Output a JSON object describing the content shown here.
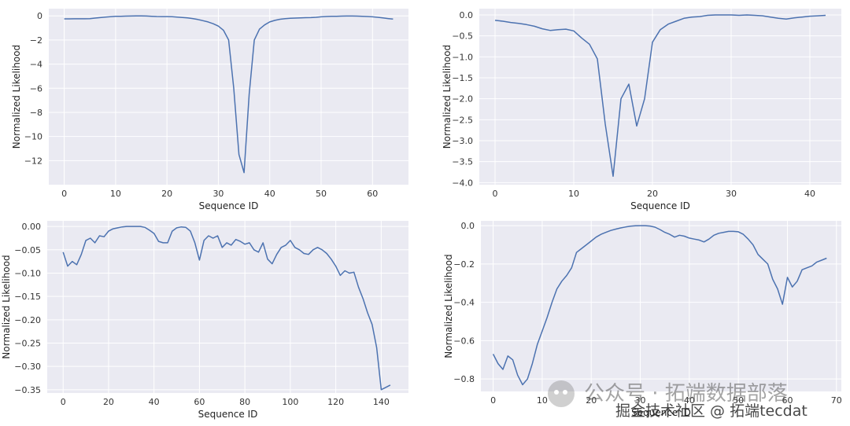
{
  "chart_data": [
    {
      "type": "line",
      "xlabel": "Sequence ID",
      "ylabel": "Normalized Likelihood",
      "xlim": [
        -3,
        67
      ],
      "ylim": [
        -14,
        0.6
      ],
      "xticks": [
        0,
        10,
        20,
        30,
        40,
        50,
        60
      ],
      "yticks": [
        0,
        -2,
        -4,
        -6,
        -8,
        -10,
        -12
      ],
      "ytick_labels": [
        "0",
        "−2",
        "−4",
        "−6",
        "−8",
        "−10",
        "−12"
      ],
      "grid": true,
      "color": "#4c72b0",
      "x": [
        0,
        1,
        2,
        3,
        4,
        5,
        6,
        7,
        8,
        9,
        10,
        11,
        12,
        13,
        14,
        15,
        16,
        17,
        18,
        19,
        20,
        21,
        22,
        23,
        24,
        25,
        26,
        27,
        28,
        29,
        30,
        31,
        32,
        33,
        34,
        35,
        36,
        37,
        38,
        39,
        40,
        41,
        42,
        43,
        44,
        45,
        46,
        47,
        48,
        49,
        50,
        51,
        52,
        53,
        54,
        55,
        56,
        57,
        58,
        59,
        60,
        61,
        62,
        63,
        64
      ],
      "y": [
        -0.25,
        -0.25,
        -0.24,
        -0.24,
        -0.24,
        -0.23,
        -0.18,
        -0.14,
        -0.1,
        -0.07,
        -0.04,
        -0.03,
        -0.02,
        -0.01,
        0,
        0,
        -0.01,
        -0.03,
        -0.05,
        -0.06,
        -0.06,
        -0.07,
        -0.1,
        -0.13,
        -0.17,
        -0.22,
        -0.3,
        -0.4,
        -0.5,
        -0.65,
        -0.85,
        -1.2,
        -2,
        -6,
        -11.5,
        -13,
        -6.5,
        -2,
        -1.1,
        -0.75,
        -0.5,
        -0.37,
        -0.28,
        -0.23,
        -0.2,
        -0.18,
        -0.16,
        -0.15,
        -0.14,
        -0.12,
        -0.08,
        -0.05,
        -0.04,
        -0.03,
        -0.02,
        -0.01,
        -0.01,
        -0.02,
        -0.03,
        -0.05,
        -0.08,
        -0.12,
        -0.17,
        -0.22,
        -0.27
      ]
    },
    {
      "type": "line",
      "xlabel": "Sequence ID",
      "ylabel": "Normalized Likelihood",
      "xlim": [
        -2,
        44
      ],
      "ylim": [
        -4.05,
        0.15
      ],
      "xticks": [
        0,
        10,
        20,
        30,
        40
      ],
      "yticks": [
        0,
        -0.5,
        -1,
        -1.5,
        -2,
        -2.5,
        -3,
        -3.5,
        -4
      ],
      "ytick_labels": [
        "0.0",
        "−0.5",
        "−1.0",
        "−1.5",
        "−2.0",
        "−2.5",
        "−3.0",
        "−3.5",
        "−4.0"
      ],
      "grid": true,
      "color": "#4c72b0",
      "x": [
        0,
        1,
        2,
        3,
        4,
        5,
        6,
        7,
        8,
        9,
        10,
        11,
        12,
        13,
        14,
        15,
        16,
        17,
        18,
        19,
        20,
        21,
        22,
        23,
        24,
        25,
        26,
        27,
        28,
        29,
        30,
        31,
        32,
        33,
        34,
        35,
        36,
        37,
        38,
        39,
        40,
        41,
        42
      ],
      "y": [
        -0.13,
        -0.15,
        -0.18,
        -0.2,
        -0.23,
        -0.27,
        -0.33,
        -0.37,
        -0.35,
        -0.34,
        -0.38,
        -0.55,
        -0.7,
        -1.05,
        -2.6,
        -3.85,
        -2,
        -1.65,
        -2.65,
        -2,
        -0.65,
        -0.35,
        -0.22,
        -0.15,
        -0.08,
        -0.05,
        -0.04,
        -0.01,
        0,
        0,
        0,
        -0.01,
        0,
        -0.01,
        -0.02,
        -0.05,
        -0.08,
        -0.1,
        -0.07,
        -0.05,
        -0.03,
        -0.02,
        -0.01
      ]
    },
    {
      "type": "line",
      "xlabel": "Sequence ID",
      "ylabel": "Normalized Likelihood",
      "xlim": [
        -7,
        152
      ],
      "ylim": [
        -0.357,
        0.012
      ],
      "xticks": [
        0,
        20,
        40,
        60,
        80,
        100,
        120,
        140
      ],
      "yticks": [
        0,
        -0.05,
        -0.1,
        -0.15,
        -0.2,
        -0.25,
        -0.3,
        -0.35
      ],
      "ytick_labels": [
        "0.00",
        "−0.05",
        "−0.10",
        "−0.15",
        "−0.20",
        "−0.25",
        "−0.30",
        "−0.35"
      ],
      "grid": true,
      "color": "#4c72b0",
      "x": [
        0,
        2,
        4,
        6,
        8,
        10,
        12,
        14,
        16,
        18,
        20,
        22,
        24,
        26,
        28,
        30,
        32,
        34,
        36,
        38,
        40,
        42,
        44,
        46,
        48,
        50,
        52,
        54,
        56,
        58,
        60,
        62,
        64,
        66,
        68,
        70,
        72,
        74,
        76,
        78,
        80,
        82,
        84,
        86,
        88,
        90,
        92,
        94,
        96,
        98,
        100,
        102,
        104,
        106,
        108,
        110,
        112,
        114,
        116,
        118,
        120,
        122,
        124,
        126,
        128,
        130,
        132,
        134,
        136,
        138,
        140,
        142,
        144
      ],
      "y": [
        -0.055,
        -0.085,
        -0.075,
        -0.082,
        -0.06,
        -0.03,
        -0.025,
        -0.035,
        -0.02,
        -0.022,
        -0.01,
        -0.005,
        -0.003,
        -0.001,
        0,
        0,
        0,
        0,
        -0.002,
        -0.008,
        -0.015,
        -0.032,
        -0.035,
        -0.035,
        -0.01,
        -0.003,
        -0.001,
        -0.002,
        -0.01,
        -0.035,
        -0.072,
        -0.03,
        -0.02,
        -0.025,
        -0.02,
        -0.045,
        -0.035,
        -0.04,
        -0.028,
        -0.032,
        -0.038,
        -0.035,
        -0.05,
        -0.055,
        -0.035,
        -0.07,
        -0.08,
        -0.06,
        -0.045,
        -0.04,
        -0.03,
        -0.045,
        -0.05,
        -0.058,
        -0.06,
        -0.05,
        -0.045,
        -0.05,
        -0.058,
        -0.07,
        -0.085,
        -0.105,
        -0.095,
        -0.1,
        -0.098,
        -0.13,
        -0.155,
        -0.185,
        -0.21,
        -0.26,
        -0.35,
        -0.345,
        -0.34
      ]
    },
    {
      "type": "line",
      "xlabel": "Sequence ID",
      "ylabel": "Normalized Likelihood",
      "xlim": [
        -2.5,
        71
      ],
      "ylim": [
        -0.865,
        0.025
      ],
      "xticks": [
        0,
        10,
        20,
        30,
        40,
        50,
        60,
        70
      ],
      "yticks": [
        0,
        -0.2,
        -0.4,
        -0.6,
        -0.8
      ],
      "ytick_labels": [
        "0.0",
        "−0.2",
        "−0.4",
        "−0.6",
        "−0.8"
      ],
      "grid": true,
      "color": "#4c72b0",
      "x": [
        0,
        1,
        2,
        3,
        4,
        5,
        6,
        7,
        8,
        9,
        10,
        11,
        12,
        13,
        14,
        15,
        16,
        17,
        18,
        19,
        20,
        21,
        22,
        23,
        24,
        25,
        26,
        27,
        28,
        29,
        30,
        31,
        32,
        33,
        34,
        35,
        36,
        37,
        38,
        39,
        40,
        41,
        42,
        43,
        44,
        45,
        46,
        47,
        48,
        49,
        50,
        51,
        52,
        53,
        54,
        55,
        56,
        57,
        58,
        59,
        60,
        61,
        62,
        63,
        64,
        65,
        66,
        67,
        68
      ],
      "y": [
        -0.67,
        -0.72,
        -0.75,
        -0.68,
        -0.7,
        -0.78,
        -0.83,
        -0.8,
        -0.72,
        -0.62,
        -0.55,
        -0.48,
        -0.4,
        -0.33,
        -0.29,
        -0.26,
        -0.22,
        -0.14,
        -0.12,
        -0.1,
        -0.08,
        -0.06,
        -0.045,
        -0.035,
        -0.025,
        -0.018,
        -0.012,
        -0.007,
        -0.003,
        -0.001,
        0,
        0,
        -0.002,
        -0.008,
        -0.02,
        -0.035,
        -0.045,
        -0.06,
        -0.05,
        -0.055,
        -0.065,
        -0.07,
        -0.075,
        -0.085,
        -0.07,
        -0.05,
        -0.04,
        -0.035,
        -0.03,
        -0.03,
        -0.032,
        -0.045,
        -0.07,
        -0.1,
        -0.15,
        -0.175,
        -0.2,
        -0.28,
        -0.33,
        -0.41,
        -0.27,
        -0.32,
        -0.29,
        -0.23,
        -0.22,
        -0.21,
        -0.19,
        -0.18,
        -0.17
      ]
    }
  ],
  "watermark": {
    "line1": "公众号 · 拓端数据部落",
    "line2": "掘金技术社区 @ 拓端tecdat"
  }
}
